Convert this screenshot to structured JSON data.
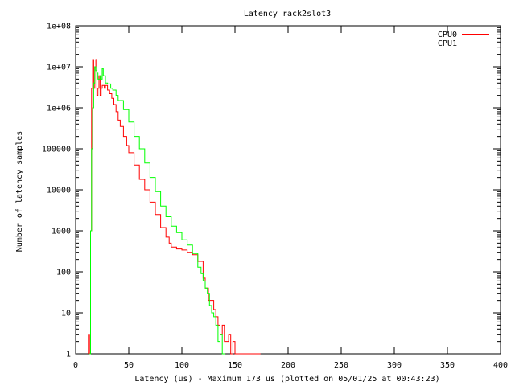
{
  "chart_data": {
    "type": "line",
    "title": "Latency rack2slot3",
    "xlabel": "Latency (us) - Maximum 173 us (plotted on 05/01/25 at 00:43:23)",
    "ylabel": "Number of latency samples",
    "xlim": [
      0,
      400
    ],
    "ylim": [
      1,
      100000000
    ],
    "yscale": "log",
    "grid": false,
    "legend_position": "top-right",
    "x_ticks": [
      "0",
      "50",
      "100",
      "150",
      "200",
      "250",
      "300",
      "350",
      "400"
    ],
    "y_ticks": [
      "1",
      "10",
      "100",
      "1000",
      "10000",
      "100000",
      "1e+06",
      "1e+07",
      "1e+08"
    ],
    "series": [
      {
        "name": "CPU0",
        "color": "#ff0000",
        "x": [
          12,
          13,
          14,
          15,
          16,
          17,
          18,
          19,
          20,
          21,
          22,
          23,
          24,
          25,
          26,
          27,
          28,
          30,
          32,
          34,
          36,
          38,
          40,
          42,
          45,
          48,
          50,
          55,
          60,
          65,
          70,
          75,
          80,
          85,
          88,
          90,
          95,
          100,
          105,
          110,
          115,
          120,
          122,
          125,
          128,
          130,
          132,
          134,
          136,
          138,
          140,
          142,
          144,
          146,
          148,
          150,
          155,
          160,
          165,
          170,
          173
        ],
        "y": [
          3,
          1,
          1000,
          3000000,
          15000000,
          3000000,
          10000000,
          15000000,
          2000000,
          3000000,
          6000000,
          2000000,
          3000000,
          3500000,
          3500000,
          3000000,
          3500000,
          2700000,
          2200000,
          1700000,
          1200000,
          800000,
          500000,
          350000,
          200000,
          120000,
          80000,
          40000,
          18000,
          10000,
          5000,
          2500,
          1200,
          700,
          500,
          400,
          360,
          340,
          300,
          260,
          180,
          70,
          40,
          20,
          20,
          12,
          8,
          5,
          3,
          5,
          2,
          2,
          3,
          1,
          2,
          1,
          1,
          1,
          1,
          1,
          1
        ]
      },
      {
        "name": "CPU1",
        "color": "#00ff00",
        "x": [
          13,
          14,
          15,
          16,
          17,
          18,
          19,
          20,
          21,
          22,
          23,
          24,
          25,
          26,
          28,
          30,
          33,
          35,
          38,
          40,
          45,
          50,
          55,
          60,
          65,
          70,
          75,
          80,
          85,
          90,
          95,
          100,
          105,
          110,
          115,
          118,
          120,
          122,
          124,
          126,
          128,
          130,
          132,
          134,
          136,
          138,
          140
        ],
        "y": [
          1,
          1000,
          100000,
          1000000,
          4000000,
          10000000,
          8000000,
          7000000,
          5000000,
          5000000,
          6000000,
          5000000,
          9000000,
          6000000,
          4000000,
          3800000,
          3000000,
          2700000,
          2000000,
          1500000,
          900000,
          450000,
          200000,
          100000,
          45000,
          20000,
          9000,
          4000,
          2200,
          1300,
          900,
          600,
          450,
          280,
          130,
          90,
          60,
          40,
          30,
          15,
          10,
          8,
          5,
          2,
          3,
          1,
          1
        ]
      }
    ]
  }
}
